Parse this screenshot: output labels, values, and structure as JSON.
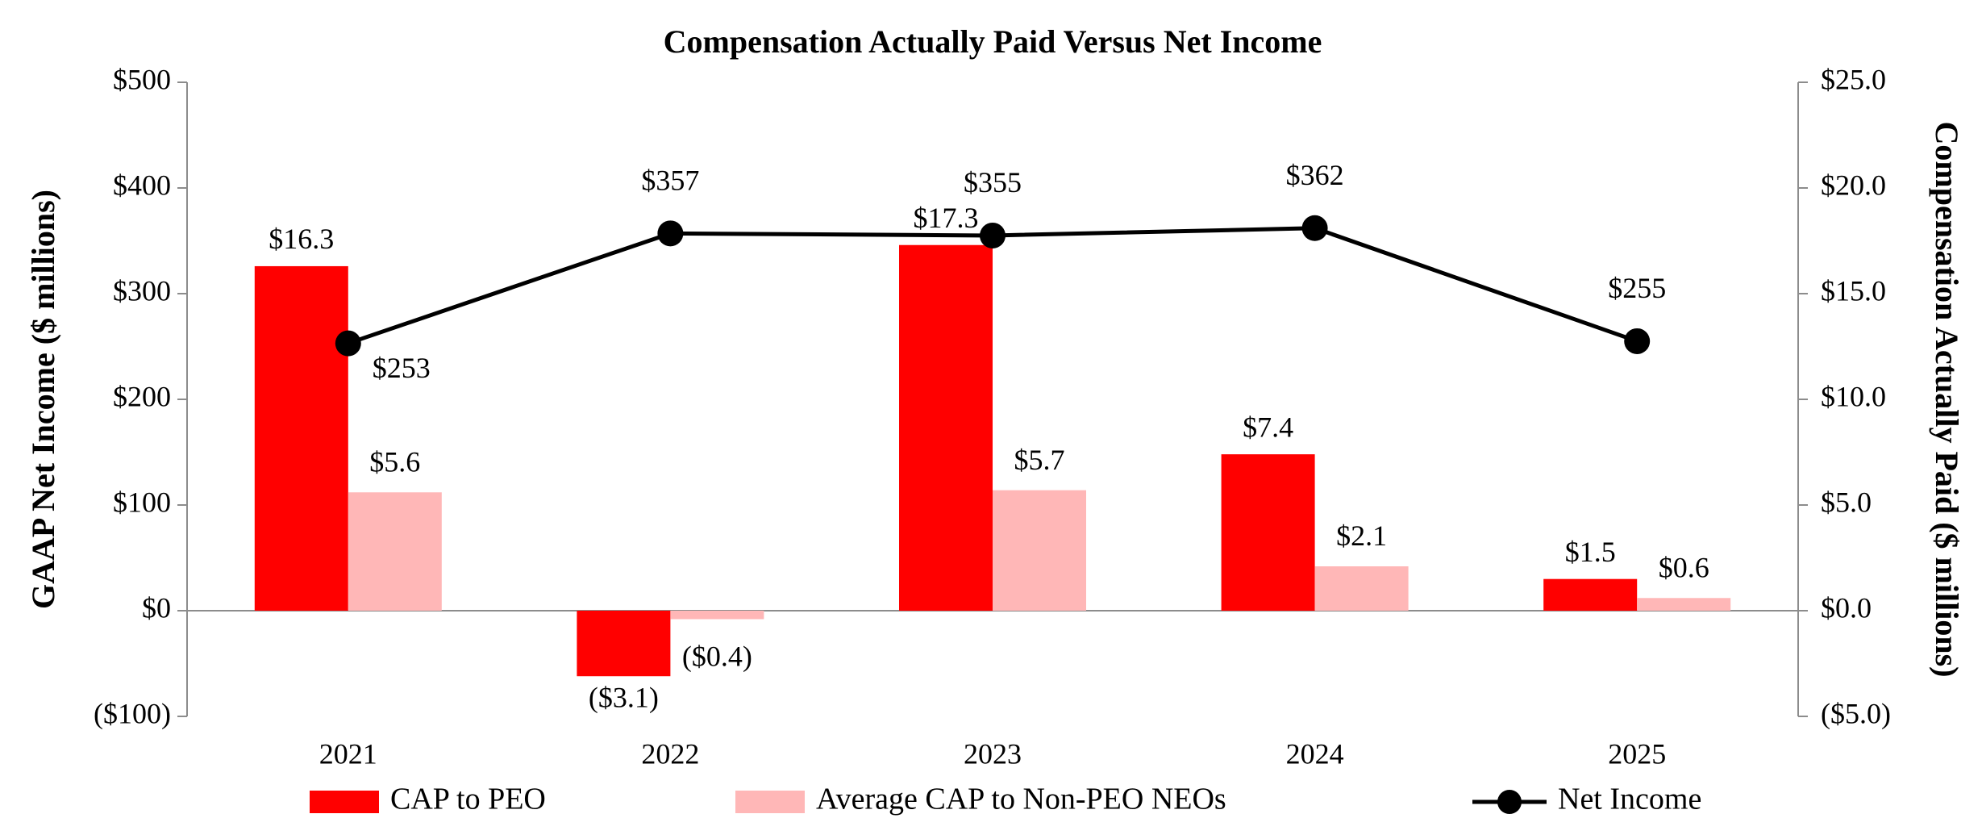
{
  "chart_data": {
    "type": "bar",
    "title": "Compensation Actually Paid Versus Net Income",
    "categories": [
      "2021",
      "2022",
      "2023",
      "2024",
      "2025"
    ],
    "y_left": {
      "label": "GAAP Net Income ($ millions)",
      "range": [
        -100,
        500
      ],
      "ticks": [
        "($100)",
        "$0",
        "$100",
        "$200",
        "$300",
        "$400",
        "$500"
      ]
    },
    "y_right": {
      "label": "Compensation Actually Paid ($ millions)",
      "range": [
        -5,
        25
      ],
      "ticks": [
        "($5.0)",
        "$0.0",
        "$5.0",
        "$10.0",
        "$15.0",
        "$20.0",
        "$25.0"
      ]
    },
    "series": [
      {
        "name": "CAP to PEO",
        "kind": "bar",
        "axis": "right",
        "color": "#ff0000",
        "values": [
          16.3,
          -3.1,
          17.3,
          7.4,
          1.5
        ],
        "labels": [
          "$16.3",
          "($3.1)",
          "$17.3",
          "$7.4",
          "$1.5"
        ]
      },
      {
        "name": "Average CAP to Non-PEO NEOs",
        "kind": "bar",
        "axis": "right",
        "color": "#ffb7b7",
        "values": [
          5.6,
          -0.4,
          5.7,
          2.1,
          0.6
        ],
        "labels": [
          "$5.6",
          "($0.4)",
          "$5.7",
          "$2.1",
          "$0.6"
        ]
      },
      {
        "name": "Net Income",
        "kind": "line",
        "axis": "left",
        "color": "#000000",
        "values": [
          253,
          357,
          355,
          362,
          255
        ],
        "labels": [
          "$253",
          "$357",
          "$355",
          "$362",
          "$255"
        ]
      }
    ],
    "legend": [
      "CAP to PEO",
      "Average CAP to Non-PEO NEOs",
      "Net Income"
    ],
    "grid": false,
    "legend_position": "bottom"
  }
}
